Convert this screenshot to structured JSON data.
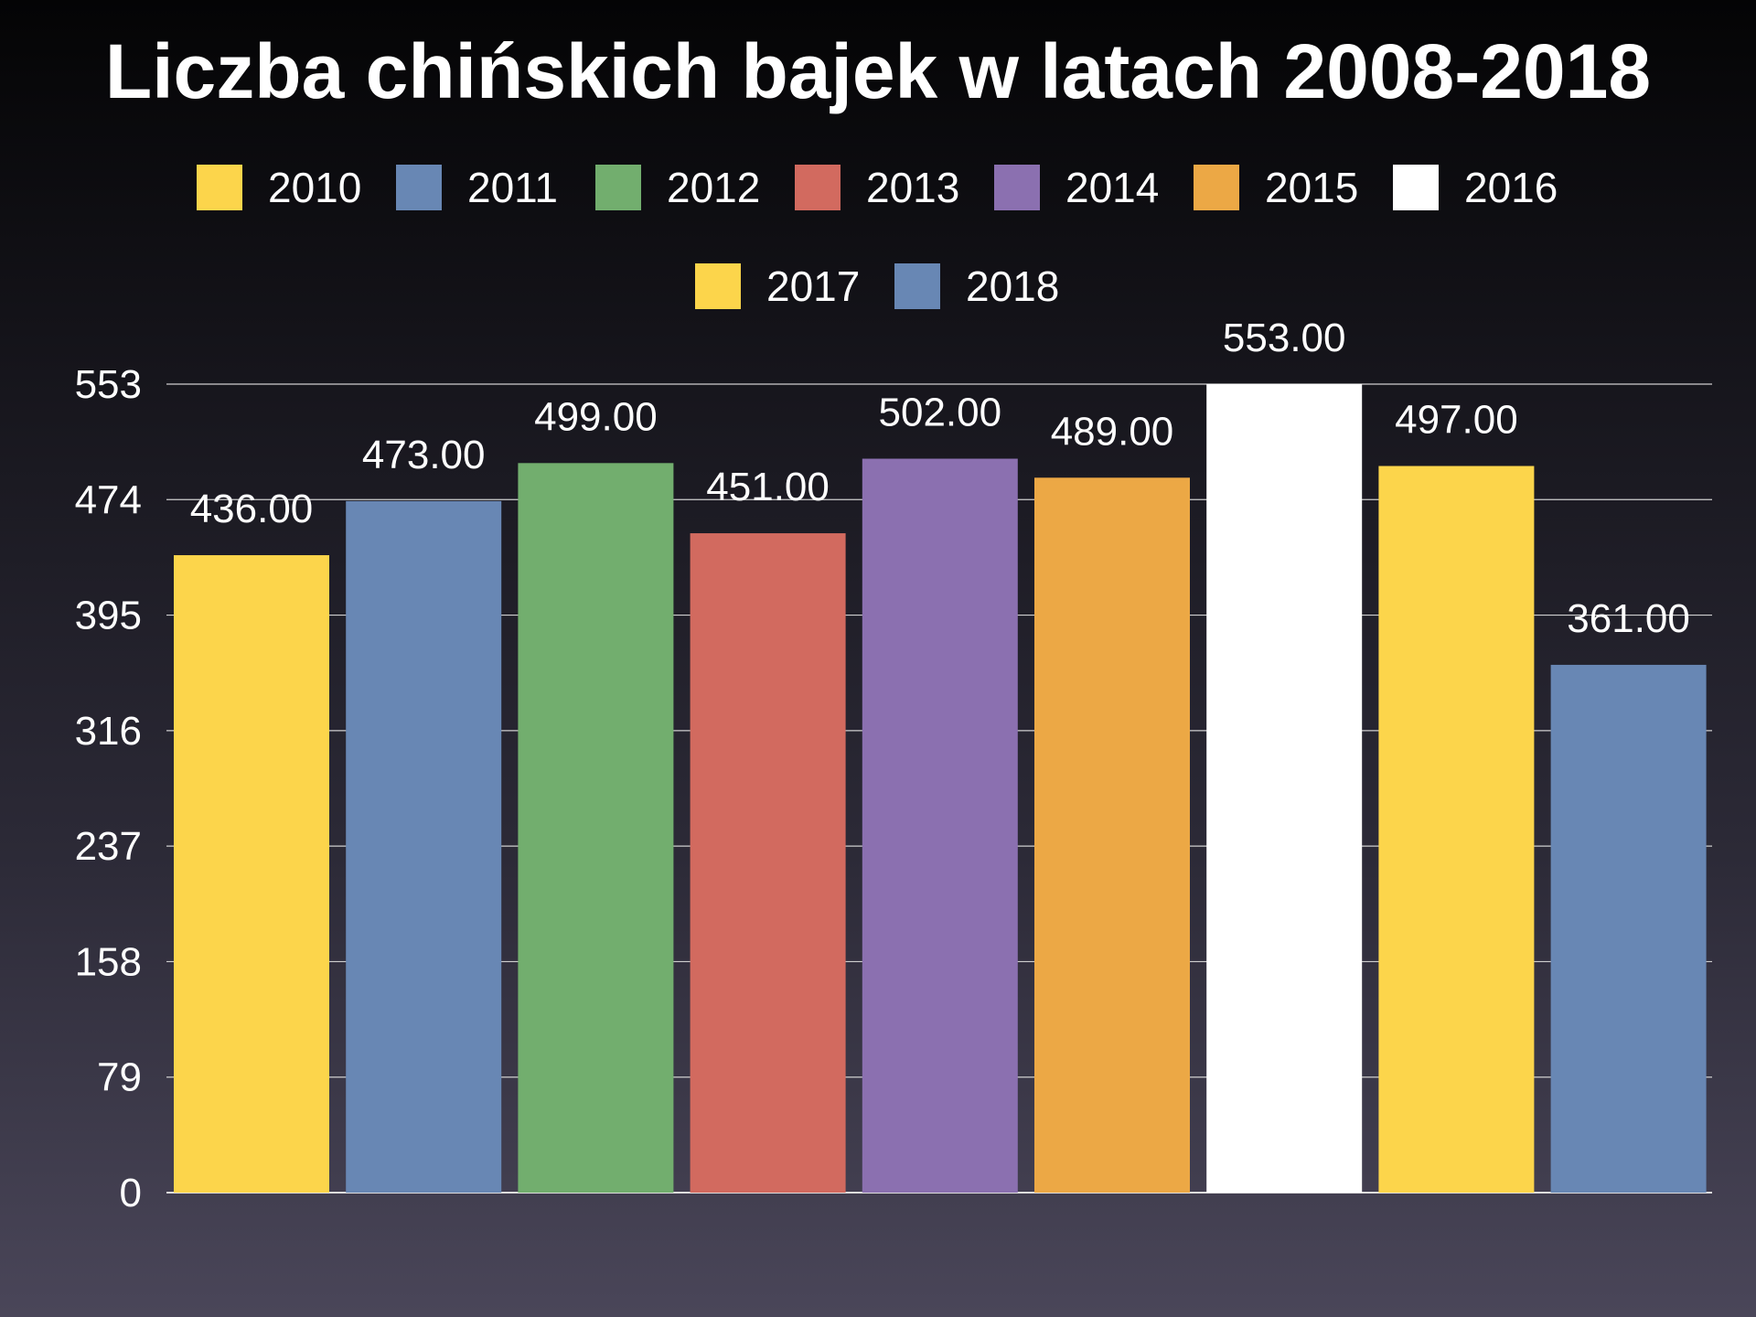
{
  "chart_data": {
    "type": "bar",
    "title": "Liczba chińskich bajek w latach 2008-2018",
    "xlabel": "",
    "ylabel": "",
    "categories": [
      "2010",
      "2011",
      "2012",
      "2013",
      "2014",
      "2015",
      "2016",
      "2017",
      "2018"
    ],
    "values": [
      436,
      473,
      499,
      451,
      502,
      489,
      553,
      497,
      361
    ],
    "value_labels": [
      "436.00",
      "473.00",
      "499.00",
      "451.00",
      "502.00",
      "489.00",
      "553.00",
      "497.00",
      "361.00"
    ],
    "colors": [
      "#fcd54b",
      "#6887b4",
      "#72ae6e",
      "#d26a5f",
      "#8b70b0",
      "#eca845",
      "#ffffff",
      "#fcd54b",
      "#6887b4"
    ],
    "ylim": [
      0,
      553
    ],
    "yticks": [
      0,
      79,
      158,
      237,
      316,
      395,
      474,
      553
    ],
    "grid": true,
    "legend_position": "top"
  }
}
